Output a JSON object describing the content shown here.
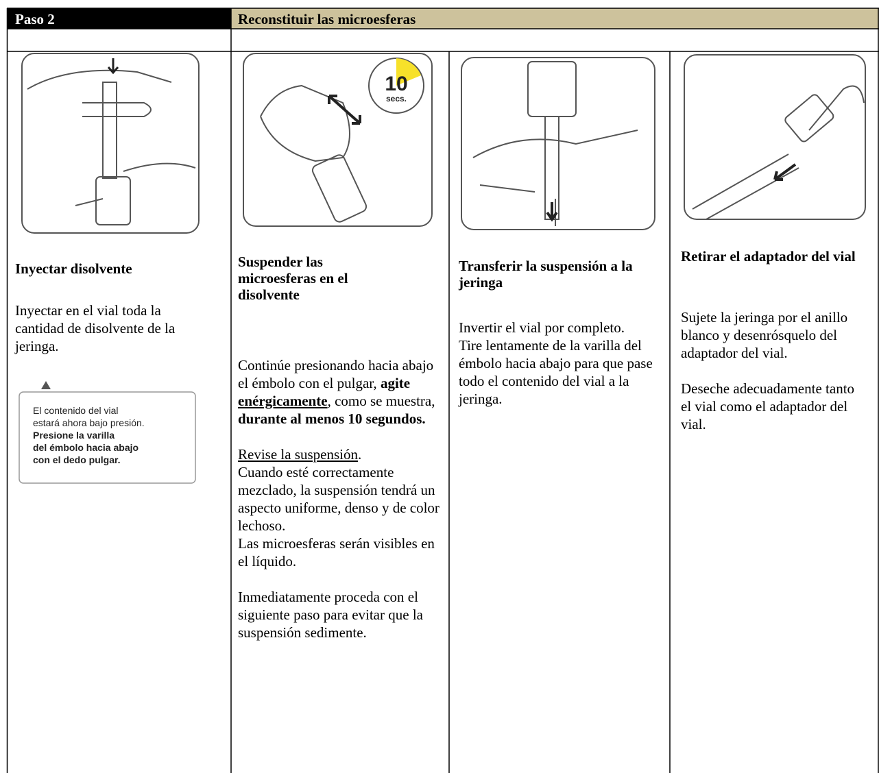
{
  "header": {
    "step": "Paso 2",
    "title": "Reconstituir las microesferas"
  },
  "columns": [
    {
      "heading": "Inyectar disolvente",
      "body": [
        {
          "lines": [
            [
              {
                "text": "Inyectar en el vial toda la cantidad de disolvente de la jeringa."
              }
            ]
          ]
        }
      ],
      "warning": {
        "lines": [
          {
            "text": "El contenido del vial"
          },
          {
            "text": "estará ahora bajo presión."
          },
          {
            "text": "Presione la varilla",
            "bold": true
          },
          {
            "text": "del émbolo hacia abajo",
            "bold": true
          },
          {
            "text": "con el dedo pulgar.",
            "bold": true
          }
        ]
      }
    },
    {
      "heading": "Suspender las microesferas en el disolvente",
      "timer": {
        "number": "10",
        "unit": "secs."
      },
      "body": [
        {
          "lines": [
            [
              {
                "text": "Continúe presionando hacia abajo el émbolo con el pulgar, "
              },
              {
                "text": "agite ",
                "bold": true
              },
              {
                "text": "enérgicamente",
                "bold": true,
                "underline": true
              },
              {
                "text": ", como se muestra, "
              },
              {
                "text": "durante al menos 10 segundos.",
                "bold": true
              }
            ]
          ]
        },
        {
          "lines": [
            [
              {
                "text": "Revise la suspensión",
                "underline": true
              },
              {
                "text": "."
              }
            ],
            [
              {
                "text": "Cuando esté correctamente mezclado, la suspensión tendrá un aspecto uniforme, denso y de color lechoso."
              }
            ],
            [
              {
                "text": "Las microesferas serán visibles en el líquido."
              }
            ]
          ]
        },
        {
          "lines": [
            [
              {
                "text": "Inmediatamente proceda con el siguiente paso para evitar que la suspensión sedimente."
              }
            ]
          ]
        }
      ]
    },
    {
      "heading": "Transferir la suspensión a la jeringa",
      "body": [
        {
          "lines": [
            [
              {
                "text": "Invertir el vial por completo."
              }
            ],
            [
              {
                "text": "Tire lentamente de la varilla del émbolo hacia abajo para que pase todo el contenido del vial a la jeringa."
              }
            ]
          ]
        }
      ]
    },
    {
      "heading": "Retirar el adaptador del vial",
      "body": [
        {
          "lines": [
            [
              {
                "text": "Sujete la jeringa por el anillo blanco y desenrósquelo del adaptador del vial."
              }
            ]
          ]
        },
        {
          "lines": [
            [
              {
                "text": "Deseche adecuadamente tanto el vial como el adaptador del vial."
              }
            ]
          ]
        }
      ]
    }
  ]
}
